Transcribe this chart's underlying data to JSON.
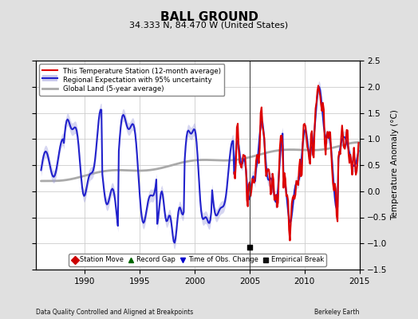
{
  "title": "BALL GROUND",
  "subtitle": "34.333 N, 84.470 W (United States)",
  "ylabel": "Temperature Anomaly (°C)",
  "xlabel_left": "Data Quality Controlled and Aligned at Breakpoints",
  "xlabel_right": "Berkeley Earth",
  "ylim": [
    -1.5,
    2.5
  ],
  "xlim": [
    1985.5,
    2015.0
  ],
  "xticks": [
    1990,
    1995,
    2000,
    2005,
    2010,
    2015
  ],
  "yticks": [
    -1.5,
    -1.0,
    -0.5,
    0.0,
    0.5,
    1.0,
    1.5,
    2.0,
    2.5
  ],
  "legend_items": [
    {
      "label": "This Temperature Station (12-month average)",
      "color": "#dd0000",
      "lw": 1.5
    },
    {
      "label": "Regional Expectation with 95% uncertainty",
      "color": "#2222cc",
      "lw": 1.5
    },
    {
      "label": "Global Land (5-year average)",
      "color": "#aaaaaa",
      "lw": 2.0
    }
  ],
  "scatter_legend": [
    {
      "label": "Station Move",
      "marker": "D",
      "color": "#cc0000"
    },
    {
      "label": "Record Gap",
      "marker": "^",
      "color": "#006600"
    },
    {
      "label": "Time of Obs. Change",
      "marker": "v",
      "color": "#0000cc"
    },
    {
      "label": "Empirical Break",
      "marker": "s",
      "color": "#111111"
    }
  ],
  "background_color": "#e0e0e0",
  "plot_bg_color": "#ffffff",
  "grid_color": "#cccccc",
  "regional_band_color": "#9999dd",
  "empirical_break_x": 2005.0,
  "empirical_break_marker_y": -1.08,
  "station_start_year": 2003.5,
  "time_obs_change_xs": [],
  "time_obs_change_ys": []
}
